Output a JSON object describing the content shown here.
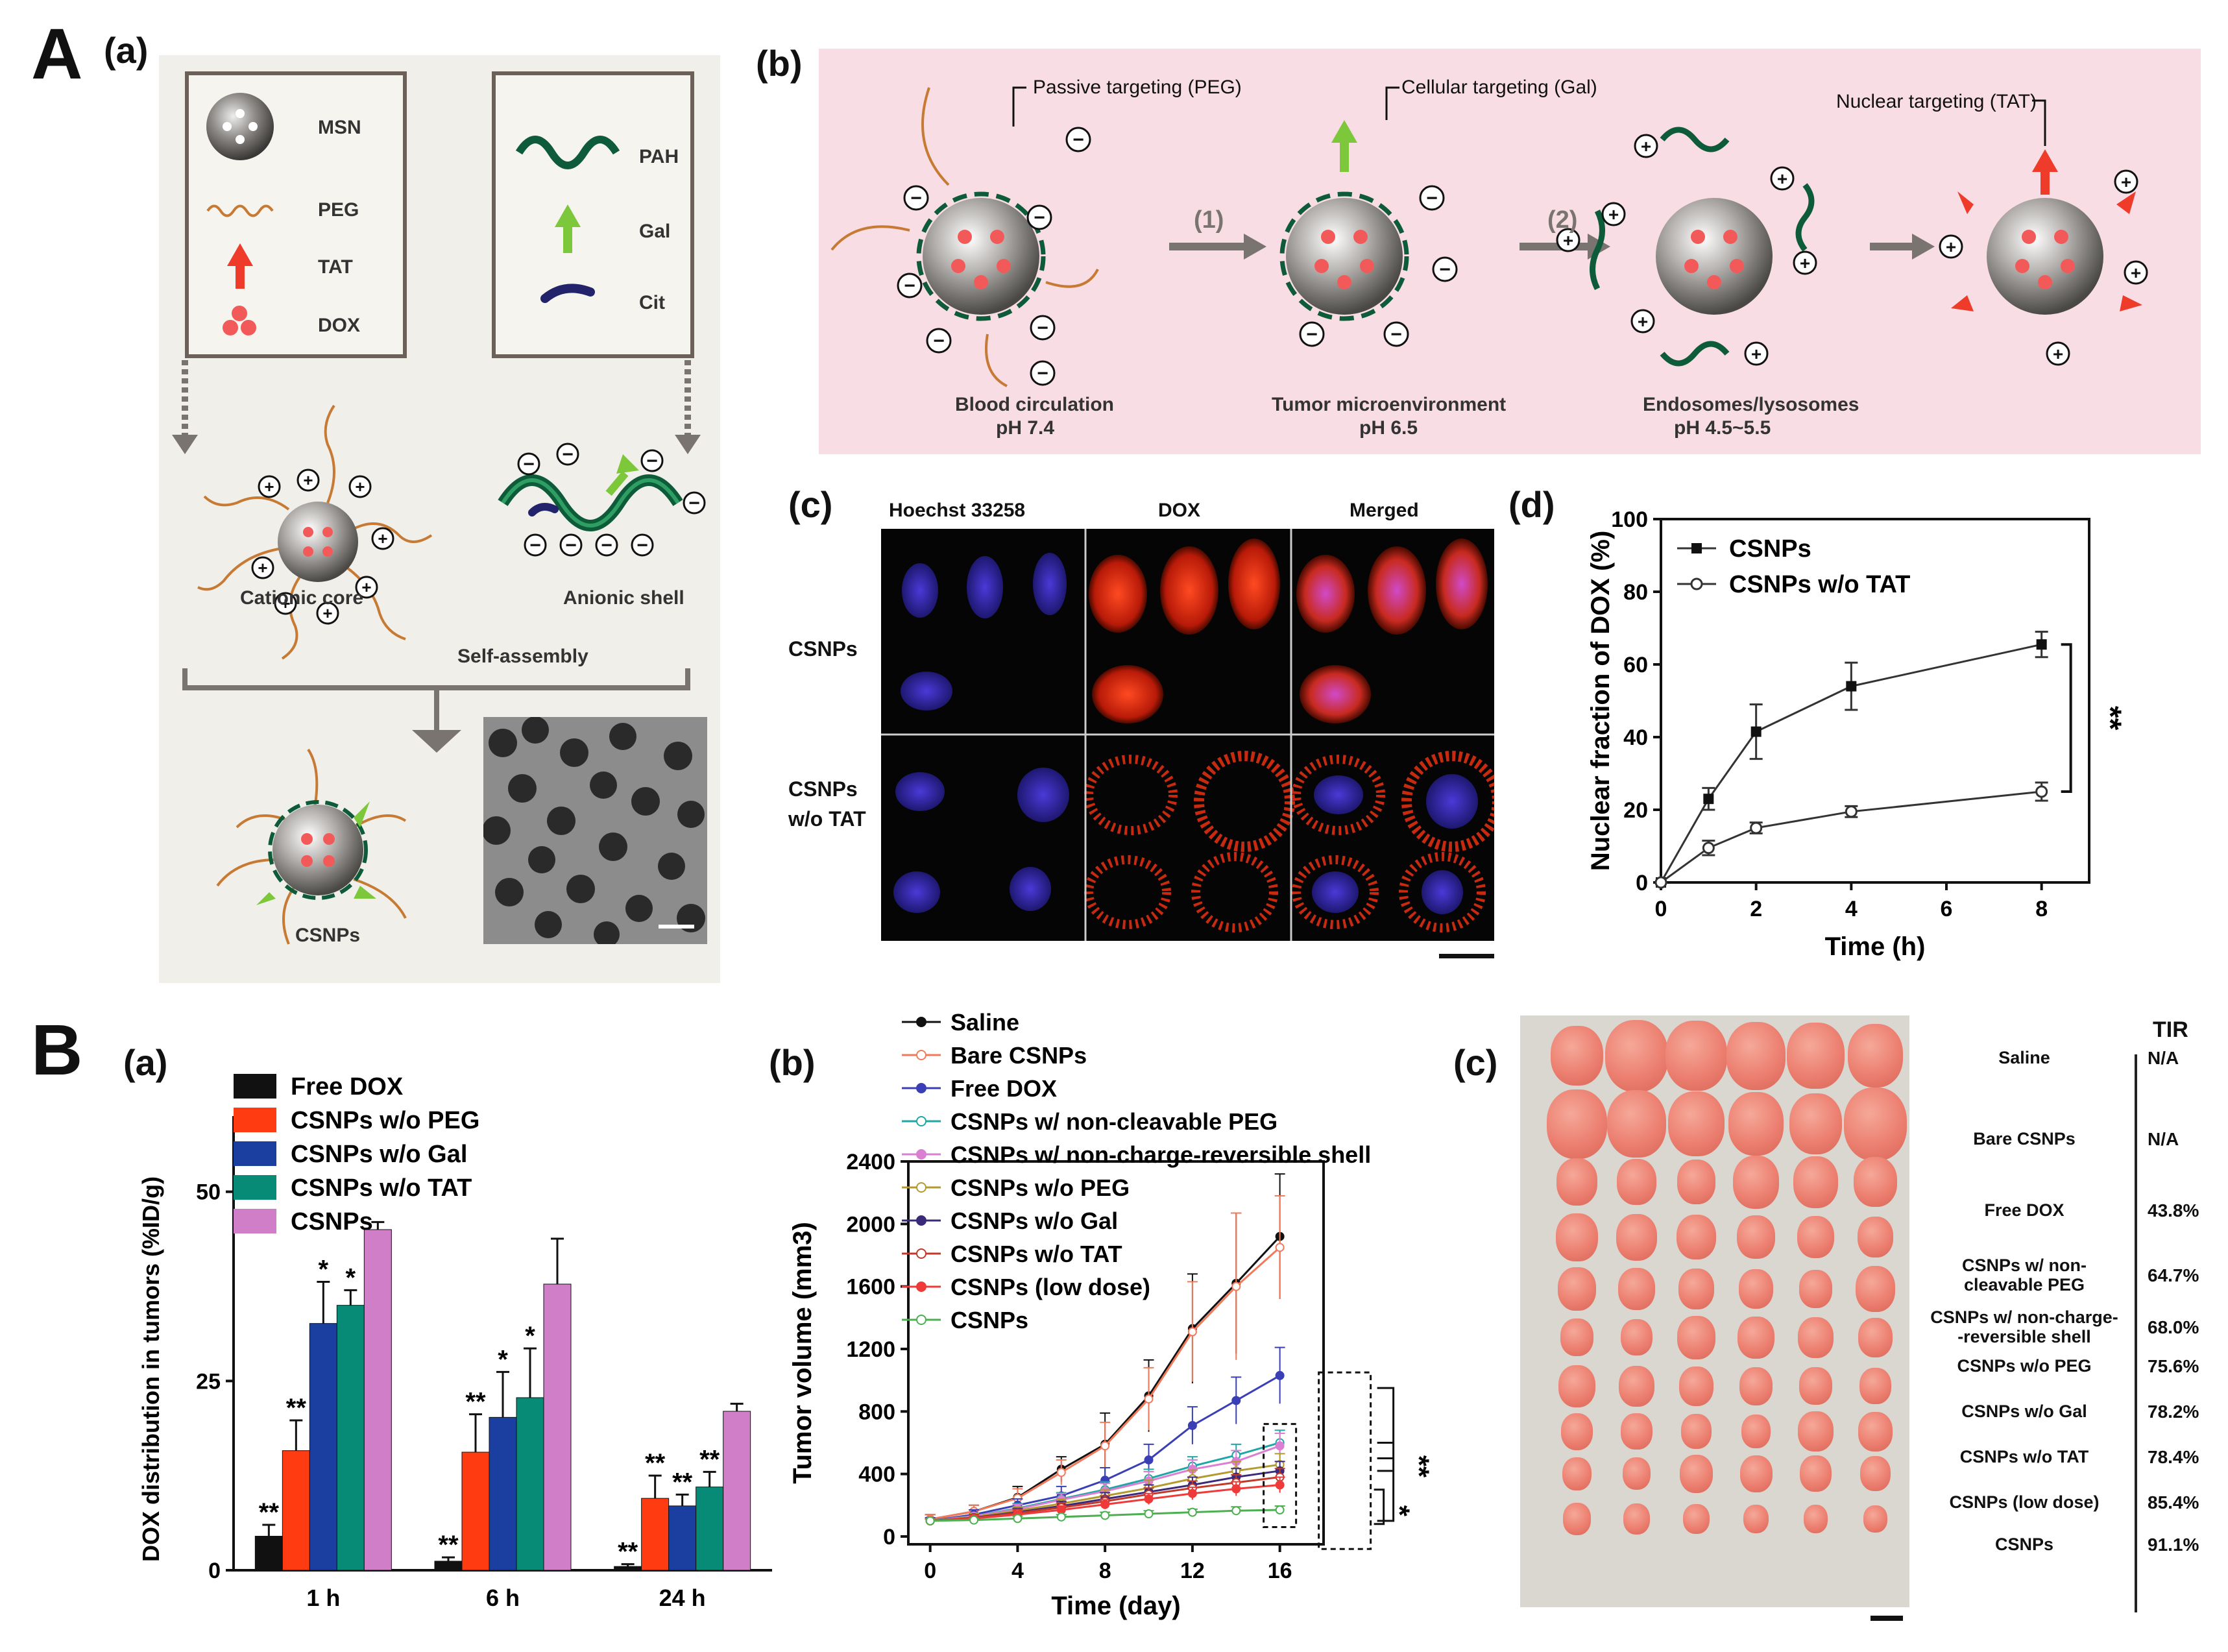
{
  "panel_A": {
    "letter": "A",
    "a": {
      "label": "(a)",
      "legend_left": [
        {
          "name": "MSN",
          "icon": "msn-sphere-icon"
        },
        {
          "name": "PEG",
          "icon": "peg-chain-icon"
        },
        {
          "name": "TAT",
          "icon": "tat-arrow-icon"
        },
        {
          "name": "DOX",
          "icon": "dox-dots-icon"
        }
      ],
      "legend_right": [
        {
          "name": "PAH",
          "icon": "pah-helix-icon"
        },
        {
          "name": "Gal",
          "icon": "gal-arrow-icon"
        },
        {
          "name": "Cit",
          "icon": "cit-segment-icon"
        }
      ],
      "cationic_core": "Cationic core",
      "anionic_shell": "Anionic shell",
      "self_assembly": "Self-assembly",
      "csnps": "CSNPs"
    },
    "b": {
      "label": "(b)",
      "passive": "Passive targeting (PEG)",
      "cellular": "Cellular targeting (Gal)",
      "nuclear": "Nuclear targeting (TAT)",
      "step1": "(1)",
      "step2": "(2)",
      "stages": [
        {
          "name": "Blood circulation",
          "ph": "pH 7.4"
        },
        {
          "name": "Tumor microenvironment",
          "ph": "pH 6.5"
        },
        {
          "name": "Endosomes/lysosomes",
          "ph": "pH 4.5~5.5"
        }
      ]
    },
    "c": {
      "label": "(c)",
      "columns": [
        "Hoechst 33258",
        "DOX",
        "Merged"
      ],
      "rows": [
        "CSNPs",
        "CSNPs\nw/o TAT"
      ]
    }
  },
  "panel_B": {
    "letter": "B",
    "c": {
      "label": "(c)",
      "header": "TIR",
      "rows": [
        {
          "name": "Saline",
          "tir": "N/A"
        },
        {
          "name": "Bare CSNPs",
          "tir": "N/A"
        },
        {
          "name": "Free DOX",
          "tir": "43.8%"
        },
        {
          "name": "CSNPs w/ non-cleavable PEG",
          "tir": "64.7%"
        },
        {
          "name": "CSNPs w/ non-charge- -reversible shell",
          "tir": "68.0%"
        },
        {
          "name": "CSNPs w/o PEG",
          "tir": "75.6%"
        },
        {
          "name": "CSNPs w/o Gal",
          "tir": "78.2%"
        },
        {
          "name": "CSNPs w/o TAT",
          "tir": "78.4%"
        },
        {
          "name": "CSNPs (low dose)",
          "tir": "85.4%"
        },
        {
          "name": "CSNPs",
          "tir": "91.1%"
        }
      ]
    }
  },
  "chart_data": [
    {
      "id": "A-d",
      "label": "(d)",
      "type": "line",
      "xlabel": "Time (h)",
      "ylabel": "Nuclear fraction of DOX (%)",
      "xlim": [
        0,
        9
      ],
      "ylim": [
        0,
        100
      ],
      "xticks": [
        0,
        2,
        4,
        6,
        8
      ],
      "yticks": [
        0,
        20,
        40,
        60,
        80,
        100
      ],
      "significance": "**",
      "series": [
        {
          "name": "CSNPs",
          "marker": "filled-square",
          "x": [
            0,
            1,
            2,
            4,
            8
          ],
          "y": [
            0,
            23,
            41.5,
            54,
            65.5
          ],
          "err": [
            0,
            3,
            7.5,
            6.5,
            3.5
          ]
        },
        {
          "name": "CSNPs w/o TAT",
          "marker": "open-circle",
          "x": [
            0,
            1,
            2,
            4,
            8
          ],
          "y": [
            0,
            9.5,
            15,
            19.5,
            25
          ],
          "err": [
            0,
            2,
            1.5,
            1.5,
            2.5
          ]
        }
      ]
    },
    {
      "id": "B-a",
      "label": "(a)",
      "type": "bar",
      "xlabel": "",
      "ylabel": "DOX distribution in tumors (%ID/g)",
      "ylim": [
        0,
        60
      ],
      "yticks": [
        0,
        25,
        50
      ],
      "categories": [
        "1 h",
        "6 h",
        "24 h"
      ],
      "series": [
        {
          "name": "Free DOX",
          "color": "#111111",
          "values": [
            4.5,
            1.2,
            0.5
          ],
          "err": [
            1.5,
            0.5,
            0.3
          ],
          "sig": [
            "**",
            "**",
            "**"
          ]
        },
        {
          "name": "CSNPs w/o PEG",
          "color": "#ff3b12",
          "values": [
            15.8,
            15.6,
            9.5
          ],
          "err": [
            4.0,
            5.0,
            3.0
          ],
          "sig": [
            "**",
            "**",
            "**"
          ]
        },
        {
          "name": "CSNPs w/o Gal",
          "color": "#1b3fa0",
          "values": [
            32.6,
            20.2,
            8.5
          ],
          "err": [
            5.5,
            6.0,
            1.5
          ],
          "sig": [
            "*",
            "*",
            "**"
          ]
        },
        {
          "name": "CSNPs w/o TAT",
          "color": "#078b77",
          "values": [
            35.0,
            22.8,
            11.0
          ],
          "err": [
            2.0,
            6.5,
            2.0
          ],
          "sig": [
            "*",
            "*",
            "**"
          ]
        },
        {
          "name": "CSNPs",
          "color": "#d17ec9",
          "values": [
            45.0,
            37.8,
            21.0
          ],
          "err": [
            1.0,
            6.0,
            1.0
          ],
          "sig": [
            "",
            "",
            ""
          ]
        }
      ]
    },
    {
      "id": "B-b",
      "label": "(b)",
      "type": "line",
      "xlabel": "Time (day)",
      "ylabel": "Tumor volume (mm3)",
      "xlim": [
        -1,
        18
      ],
      "ylim": [
        -50,
        2400
      ],
      "xticks": [
        0,
        4,
        8,
        12,
        16
      ],
      "yticks": [
        0,
        400,
        800,
        1200,
        1600,
        2000,
        2400
      ],
      "significance": [
        "**",
        "*"
      ],
      "x": [
        0,
        2,
        4,
        6,
        8,
        10,
        12,
        14,
        16
      ],
      "series": [
        {
          "name": "Saline",
          "color": "#111111",
          "marker": "square",
          "values": [
            110,
            160,
            250,
            430,
            590,
            900,
            1330,
            1620,
            1920
          ],
          "err": [
            30,
            40,
            70,
            80,
            200,
            230,
            350,
            450,
            400
          ]
        },
        {
          "name": "Bare CSNPs",
          "color": "#f27a5a",
          "marker": "open-circle",
          "values": [
            110,
            160,
            245,
            410,
            580,
            880,
            1310,
            1600,
            1850
          ],
          "err": [
            30,
            40,
            60,
            80,
            150,
            200,
            320,
            470,
            330
          ]
        },
        {
          "name": "Free DOX",
          "color": "#3b3fb5",
          "marker": "triangle",
          "values": [
            100,
            140,
            200,
            260,
            360,
            490,
            710,
            870,
            1030
          ],
          "err": [
            20,
            30,
            40,
            60,
            80,
            100,
            120,
            150,
            180
          ]
        },
        {
          "name": "CSNPs w/ non-cleavable PEG",
          "color": "#1fa6a6",
          "marker": "open-triangle-down",
          "values": [
            100,
            130,
            180,
            240,
            300,
            370,
            450,
            520,
            600
          ],
          "err": [
            15,
            20,
            30,
            40,
            50,
            60,
            60,
            70,
            80
          ]
        },
        {
          "name": "CSNPs w/ non-charge-reversible shell",
          "color": "#da7fd1",
          "marker": "triangle-left",
          "values": [
            100,
            130,
            175,
            235,
            290,
            355,
            430,
            480,
            580
          ],
          "err": [
            15,
            20,
            30,
            40,
            50,
            60,
            60,
            70,
            80
          ]
        },
        {
          "name": "CSNPs w/o PEG",
          "color": "#b49a2e",
          "marker": "open-triangle-right",
          "values": [
            100,
            125,
            165,
            210,
            260,
            310,
            370,
            420,
            460
          ],
          "err": [
            15,
            20,
            25,
            30,
            40,
            50,
            55,
            60,
            70
          ]
        },
        {
          "name": "CSNPs w/o Gal",
          "color": "#3b2a7a",
          "marker": "diamond",
          "values": [
            100,
            120,
            155,
            195,
            240,
            285,
            330,
            380,
            420
          ],
          "err": [
            15,
            20,
            25,
            30,
            40,
            45,
            50,
            55,
            60
          ]
        },
        {
          "name": "CSNPs w/o TAT",
          "color": "#c0392b",
          "marker": "open-hexagon",
          "values": [
            100,
            118,
            150,
            185,
            225,
            270,
            310,
            345,
            380
          ],
          "err": [
            15,
            20,
            25,
            30,
            35,
            40,
            45,
            50,
            55
          ]
        },
        {
          "name": "CSNPs (low dose)",
          "color": "#ef3a3a",
          "marker": "circle",
          "values": [
            100,
            115,
            140,
            170,
            205,
            240,
            275,
            305,
            330
          ],
          "err": [
            15,
            20,
            25,
            25,
            30,
            35,
            40,
            45,
            50
          ]
        },
        {
          "name": "CSNPs",
          "color": "#4caf50",
          "marker": "open-star",
          "values": [
            100,
            105,
            115,
            125,
            135,
            145,
            155,
            165,
            170
          ],
          "err": [
            10,
            10,
            15,
            15,
            20,
            20,
            20,
            25,
            25
          ]
        }
      ]
    }
  ]
}
